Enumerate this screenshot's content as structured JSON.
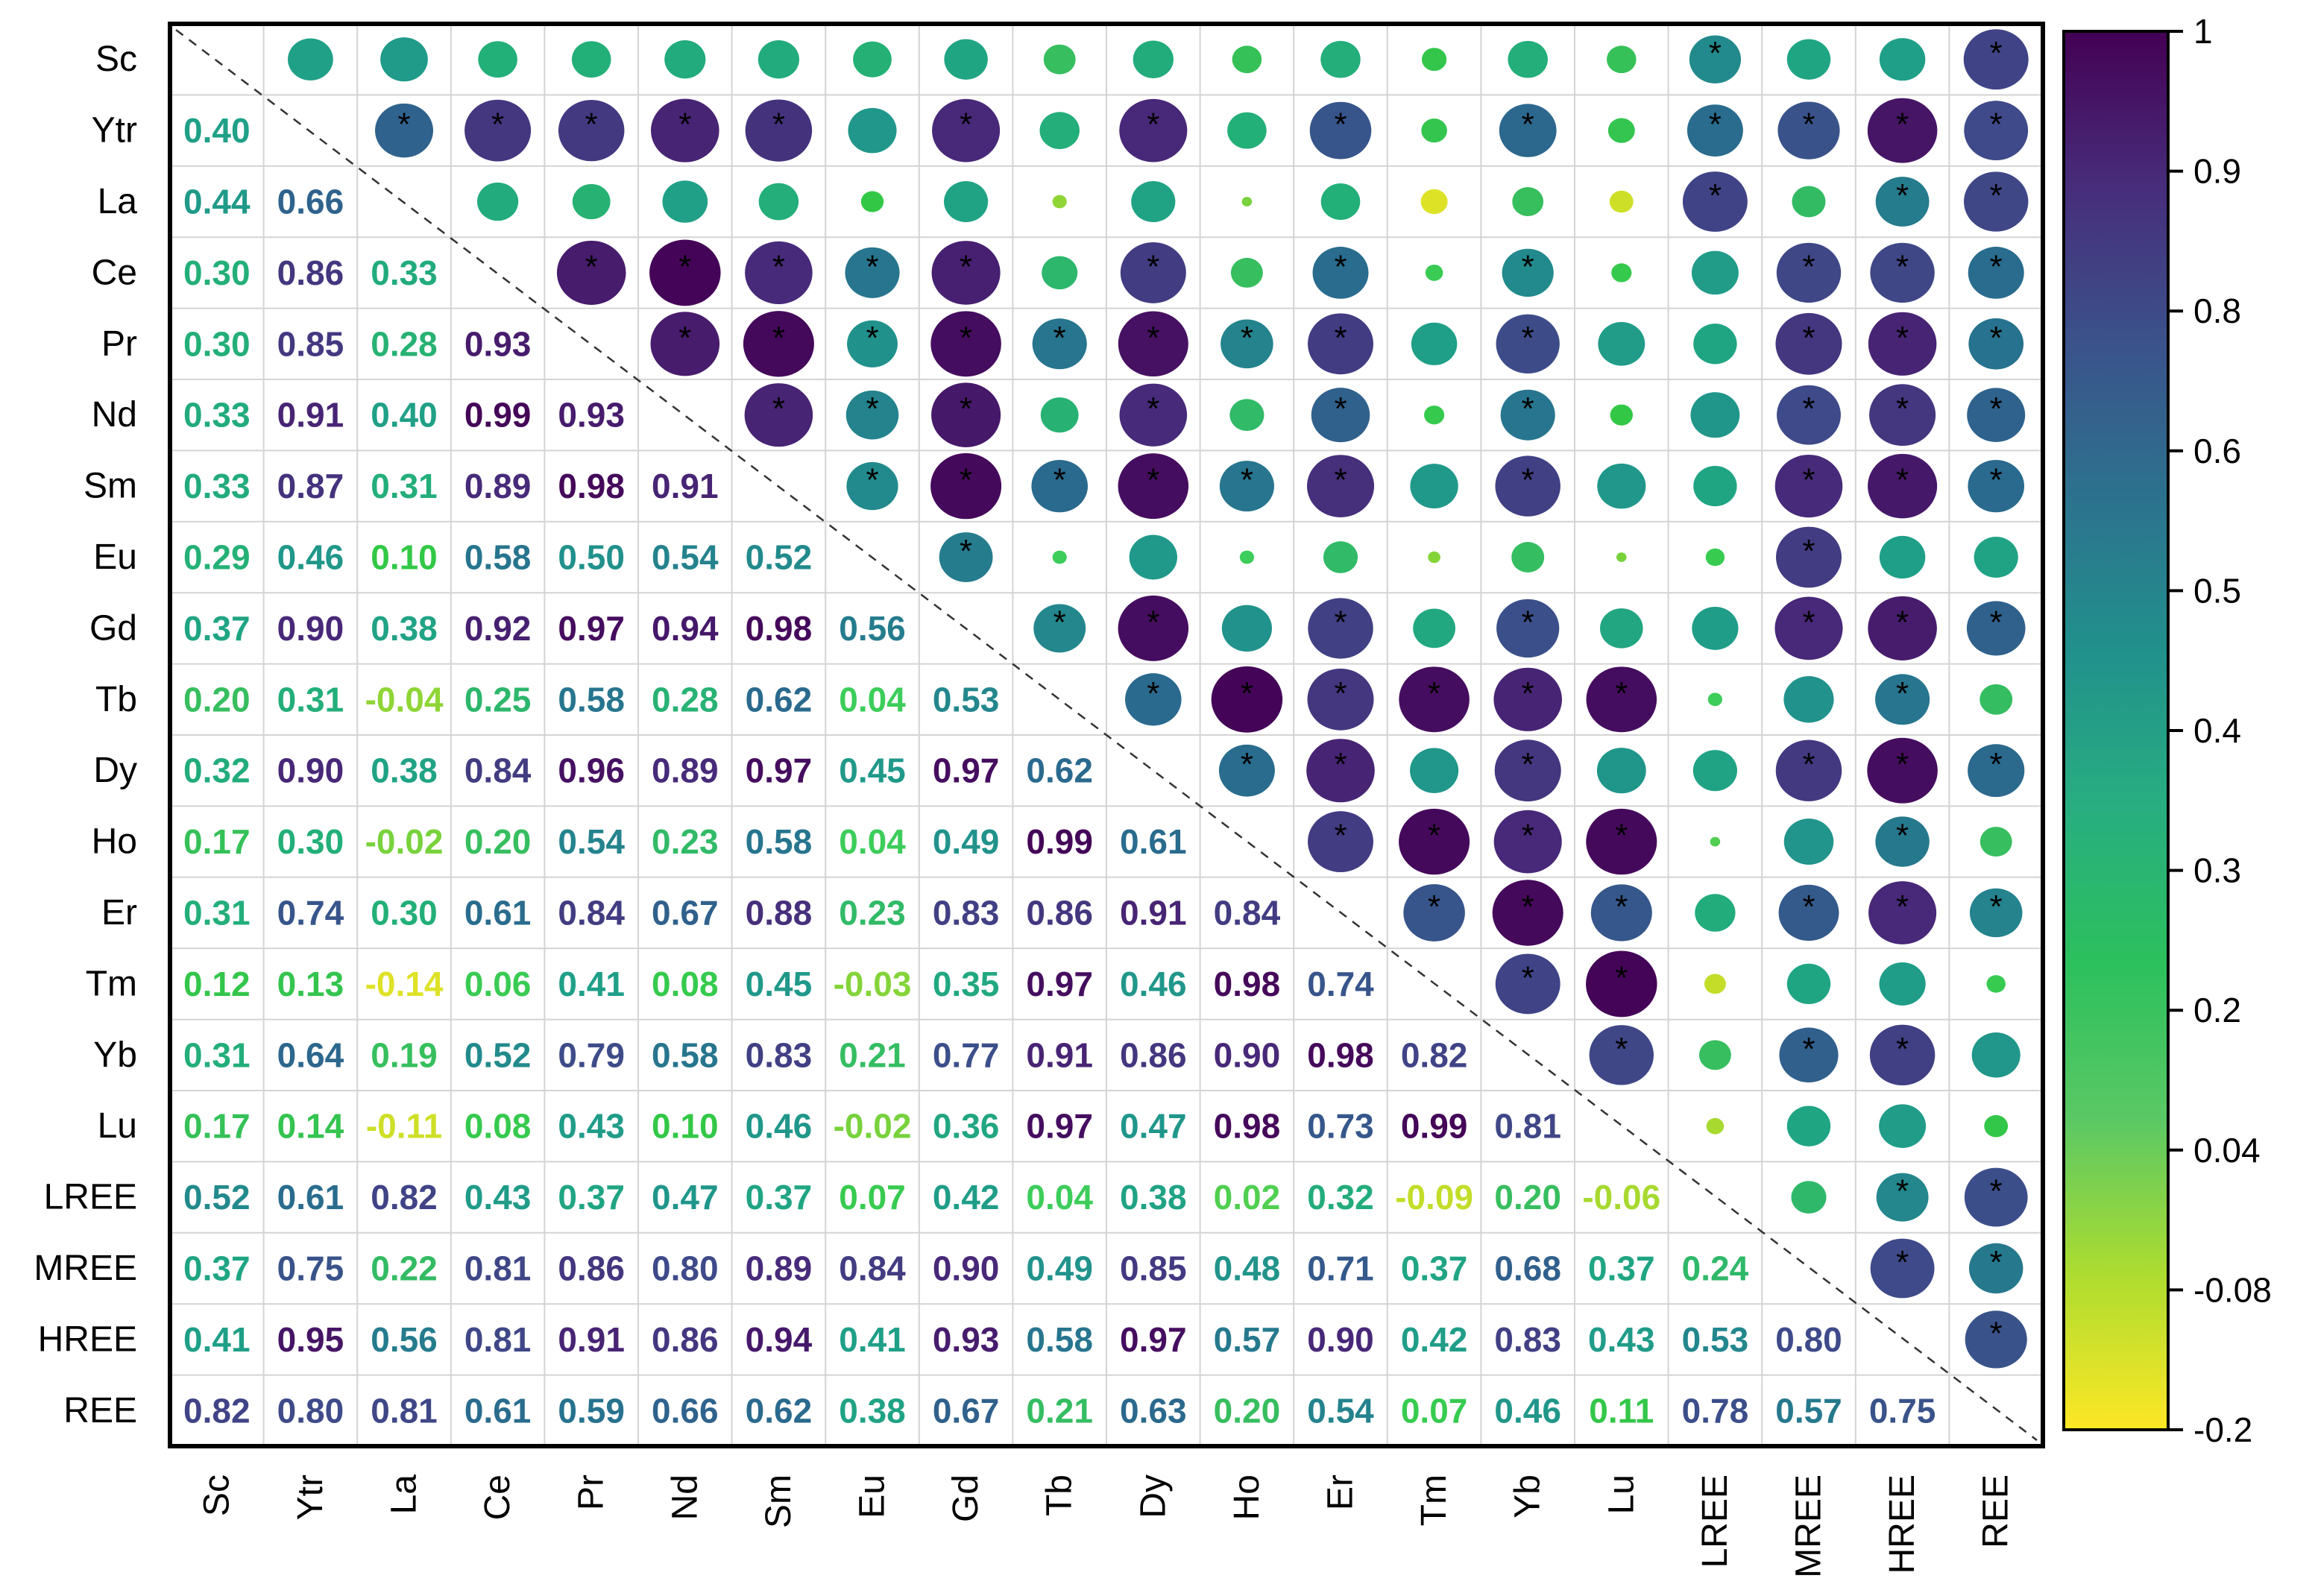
{
  "chart_data": {
    "type": "heatmap",
    "variables": [
      "Sc",
      "Ytr",
      "La",
      "Ce",
      "Pr",
      "Nd",
      "Sm",
      "Eu",
      "Gd",
      "Tb",
      "Dy",
      "Ho",
      "Er",
      "Tm",
      "Yb",
      "Lu",
      "LREE",
      "MREE",
      "HREE",
      "REE"
    ],
    "lower_labels": [
      [],
      [
        "0.40"
      ],
      [
        "0.44",
        "0.66"
      ],
      [
        "0.30",
        "0.86",
        "0.33"
      ],
      [
        "0.30",
        "0.85",
        "0.28",
        "0.93"
      ],
      [
        "0.33",
        "0.91",
        "0.40",
        "0.99",
        "0.93"
      ],
      [
        "0.33",
        "0.87",
        "0.31",
        "0.89",
        "0.98",
        "0.91"
      ],
      [
        "0.29",
        "0.46",
        "0.10",
        "0.58",
        "0.50",
        "0.54",
        "0.52"
      ],
      [
        "0.37",
        "0.90",
        "0.38",
        "0.92",
        "0.97",
        "0.94",
        "0.98",
        "0.56"
      ],
      [
        "0.20",
        "0.31",
        "-0.04",
        "0.25",
        "0.58",
        "0.28",
        "0.62",
        "0.04",
        "0.53"
      ],
      [
        "0.32",
        "0.90",
        "0.38",
        "0.84",
        "0.96",
        "0.89",
        "0.97",
        "0.45",
        "0.97",
        "0.62"
      ],
      [
        "0.17",
        "0.30",
        "-0.02",
        "0.20",
        "0.54",
        "0.23",
        "0.58",
        "0.04",
        "0.49",
        "0.99",
        "0.61"
      ],
      [
        "0.31",
        "0.74",
        "0.30",
        "0.61",
        "0.84",
        "0.67",
        "0.88",
        "0.23",
        "0.83",
        "0.86",
        "0.91",
        "0.84"
      ],
      [
        "0.12",
        "0.13",
        "-0.14",
        "0.06",
        "0.41",
        "0.08",
        "0.45",
        "-0.03",
        "0.35",
        "0.97",
        "0.46",
        "0.98",
        "0.74"
      ],
      [
        "0.31",
        "0.64",
        "0.19",
        "0.52",
        "0.79",
        "0.58",
        "0.83",
        "0.21",
        "0.77",
        "0.91",
        "0.86",
        "0.90",
        "0.98",
        "0.82"
      ],
      [
        "0.17",
        "0.14",
        "-0.11",
        "0.08",
        "0.43",
        "0.10",
        "0.46",
        "-0.02",
        "0.36",
        "0.97",
        "0.47",
        "0.98",
        "0.73",
        "0.99",
        "0.81"
      ],
      [
        "0.52",
        "0.61",
        "0.82",
        "0.43",
        "0.37",
        "0.47",
        "0.37",
        "0.07",
        "0.42",
        "0.04",
        "0.38",
        "0.02",
        "0.32",
        "-0.09",
        "0.20",
        "-0.06"
      ],
      [
        "0.37",
        "0.75",
        "0.22",
        "0.81",
        "0.86",
        "0.80",
        "0.89",
        "0.84",
        "0.90",
        "0.49",
        "0.85",
        "0.48",
        "0.71",
        "0.37",
        "0.68",
        "0.37",
        "0.24"
      ],
      [
        "0.41",
        "0.95",
        "0.56",
        "0.81",
        "0.91",
        "0.86",
        "0.94",
        "0.41",
        "0.93",
        "0.58",
        "0.97",
        "0.57",
        "0.90",
        "0.42",
        "0.83",
        "0.43",
        "0.53",
        "0.80"
      ],
      [
        "0.82",
        "0.80",
        "0.81",
        "0.61",
        "0.59",
        "0.66",
        "0.62",
        "0.38",
        "0.67",
        "0.21",
        "0.63",
        "0.20",
        "0.54",
        "0.07",
        "0.46",
        "0.11",
        "0.78",
        "0.57",
        "0.75"
      ]
    ],
    "significance_marker": "*",
    "upper_significant_pairs": [
      [
        0,
        16
      ],
      [
        0,
        19
      ],
      [
        1,
        2
      ],
      [
        1,
        3
      ],
      [
        1,
        4
      ],
      [
        1,
        5
      ],
      [
        1,
        6
      ],
      [
        1,
        8
      ],
      [
        1,
        10
      ],
      [
        1,
        12
      ],
      [
        1,
        14
      ],
      [
        1,
        16
      ],
      [
        1,
        17
      ],
      [
        1,
        18
      ],
      [
        1,
        19
      ],
      [
        2,
        16
      ],
      [
        2,
        18
      ],
      [
        2,
        19
      ],
      [
        3,
        4
      ],
      [
        3,
        5
      ],
      [
        3,
        6
      ],
      [
        3,
        7
      ],
      [
        3,
        8
      ],
      [
        3,
        10
      ],
      [
        3,
        12
      ],
      [
        3,
        14
      ],
      [
        3,
        17
      ],
      [
        3,
        18
      ],
      [
        3,
        19
      ],
      [
        4,
        5
      ],
      [
        4,
        6
      ],
      [
        4,
        7
      ],
      [
        4,
        8
      ],
      [
        4,
        9
      ],
      [
        4,
        10
      ],
      [
        4,
        11
      ],
      [
        4,
        12
      ],
      [
        4,
        14
      ],
      [
        4,
        17
      ],
      [
        4,
        18
      ],
      [
        4,
        19
      ],
      [
        5,
        6
      ],
      [
        5,
        7
      ],
      [
        5,
        8
      ],
      [
        5,
        10
      ],
      [
        5,
        12
      ],
      [
        5,
        14
      ],
      [
        5,
        17
      ],
      [
        5,
        18
      ],
      [
        5,
        19
      ],
      [
        6,
        7
      ],
      [
        6,
        8
      ],
      [
        6,
        9
      ],
      [
        6,
        10
      ],
      [
        6,
        11
      ],
      [
        6,
        12
      ],
      [
        6,
        14
      ],
      [
        6,
        17
      ],
      [
        6,
        18
      ],
      [
        6,
        19
      ],
      [
        7,
        8
      ],
      [
        7,
        17
      ],
      [
        8,
        9
      ],
      [
        8,
        10
      ],
      [
        8,
        12
      ],
      [
        8,
        14
      ],
      [
        8,
        17
      ],
      [
        8,
        18
      ],
      [
        8,
        19
      ],
      [
        9,
        10
      ],
      [
        9,
        11
      ],
      [
        9,
        12
      ],
      [
        9,
        13
      ],
      [
        9,
        14
      ],
      [
        9,
        15
      ],
      [
        9,
        18
      ],
      [
        10,
        11
      ],
      [
        10,
        12
      ],
      [
        10,
        14
      ],
      [
        10,
        17
      ],
      [
        10,
        18
      ],
      [
        10,
        19
      ],
      [
        11,
        12
      ],
      [
        11,
        13
      ],
      [
        11,
        14
      ],
      [
        11,
        15
      ],
      [
        11,
        18
      ],
      [
        12,
        13
      ],
      [
        12,
        14
      ],
      [
        12,
        15
      ],
      [
        12,
        17
      ],
      [
        12,
        18
      ],
      [
        12,
        19
      ],
      [
        13,
        14
      ],
      [
        13,
        15
      ],
      [
        14,
        15
      ],
      [
        14,
        17
      ],
      [
        14,
        18
      ],
      [
        16,
        18
      ],
      [
        16,
        19
      ],
      [
        17,
        18
      ],
      [
        17,
        19
      ],
      [
        18,
        19
      ]
    ],
    "colorbar": {
      "tick_labels": [
        "1",
        "0.9",
        "0.8",
        "0.6",
        "0.5",
        "0.4",
        "0.3",
        "0.2",
        "0.04",
        "-0.08",
        "-0.2"
      ],
      "gradient_colors": [
        "#440154",
        "#472d7b",
        "#3b528b",
        "#2c728e",
        "#21918c",
        "#28ae80",
        "#2cc05d",
        "#5ac864",
        "#addc30",
        "#fde725"
      ]
    },
    "diagonal_line": "dashed",
    "legend_placement": "right"
  }
}
